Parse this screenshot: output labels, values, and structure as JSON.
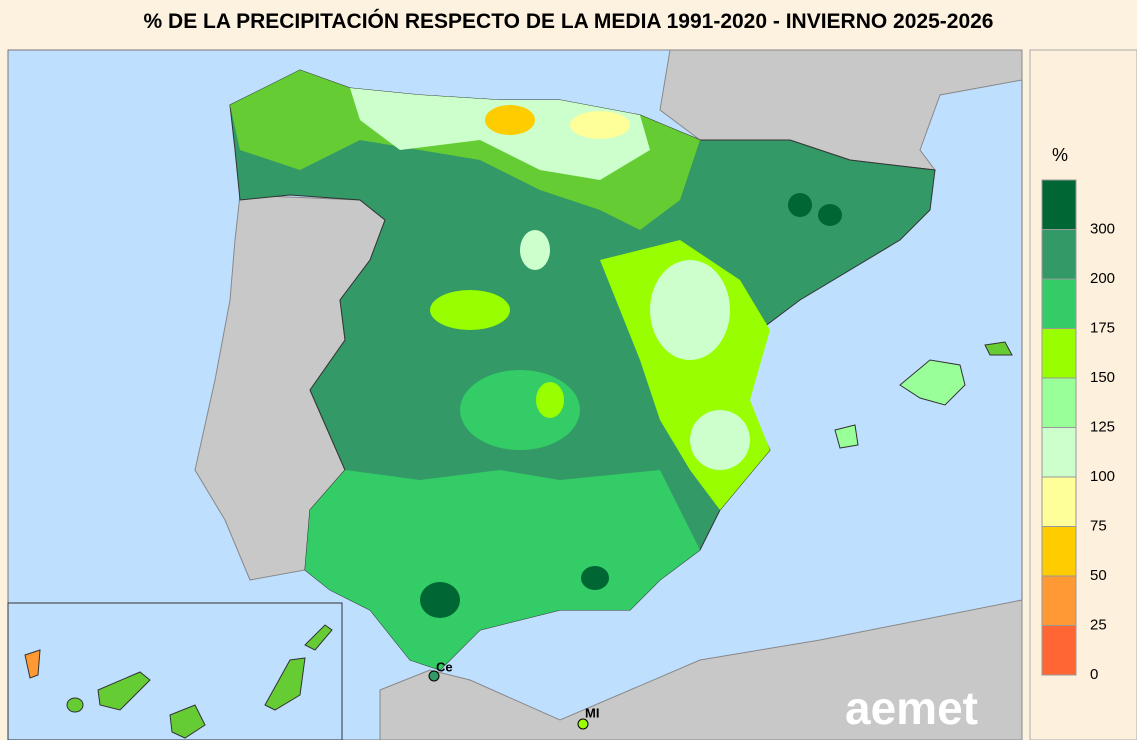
{
  "header": {
    "title": "% DE LA PRECIPITACIÓN RESPECTO DE LA MEDIA 1991-2020 - INVIERNO 2025-2026"
  },
  "legend": {
    "title": "%",
    "colors": [
      "#006633",
      "#339966",
      "#33cc66",
      "#99ff00",
      "#99ff99",
      "#ccffcc",
      "#ffff99",
      "#ffcc00",
      "#ff9933",
      "#ff6633"
    ],
    "ticks": [
      300,
      200,
      175,
      150,
      125,
      100,
      75,
      50,
      25,
      0
    ]
  },
  "places": [
    "Ce",
    "MI"
  ],
  "logo": "aemet"
}
